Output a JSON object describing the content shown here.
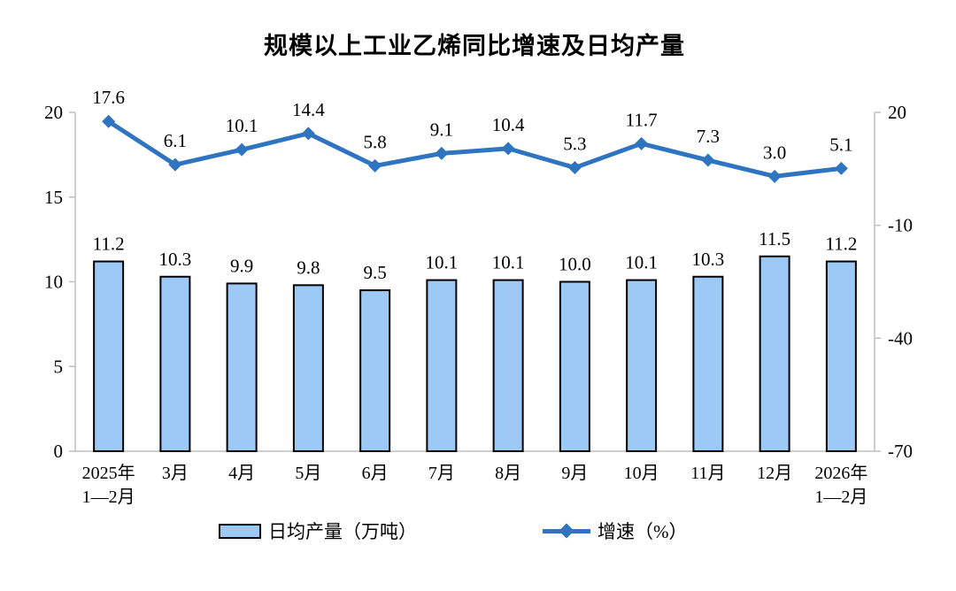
{
  "chart_data": {
    "type": "bar+line",
    "title": "规模以上工业乙烯同比增速及日均产量",
    "categories": [
      "2025年\n1—2月",
      "3月",
      "4月",
      "5月",
      "6月",
      "7月",
      "8月",
      "9月",
      "10月",
      "11月",
      "12月",
      "2026年\n1—2月"
    ],
    "series": [
      {
        "name": "日均产量（万吨）",
        "type": "bar",
        "axis": "left",
        "values": [
          11.2,
          10.3,
          9.9,
          9.8,
          9.5,
          10.1,
          10.1,
          10.0,
          10.1,
          10.3,
          11.5,
          11.2
        ]
      },
      {
        "name": "增速（%）",
        "type": "line",
        "axis": "right",
        "values": [
          17.6,
          6.1,
          10.1,
          14.4,
          5.8,
          9.1,
          10.4,
          5.3,
          11.7,
          7.3,
          3.0,
          5.1
        ]
      }
    ],
    "left_axis": {
      "min": 0,
      "max": 20,
      "ticks": [
        0,
        5,
        10,
        15,
        20
      ]
    },
    "right_axis": {
      "min": -70,
      "max": 20,
      "ticks": [
        20,
        -10,
        -40,
        -70
      ]
    },
    "legend": [
      "日均产量（万吨）",
      "增速（%）"
    ],
    "legend_position": "bottom",
    "grid": false,
    "colors": {
      "bar_fill": "#9CC9F6",
      "bar_border": "#000000",
      "line": "#2E74C0",
      "axis": "#BFBFBF",
      "text": "#000000"
    }
  }
}
